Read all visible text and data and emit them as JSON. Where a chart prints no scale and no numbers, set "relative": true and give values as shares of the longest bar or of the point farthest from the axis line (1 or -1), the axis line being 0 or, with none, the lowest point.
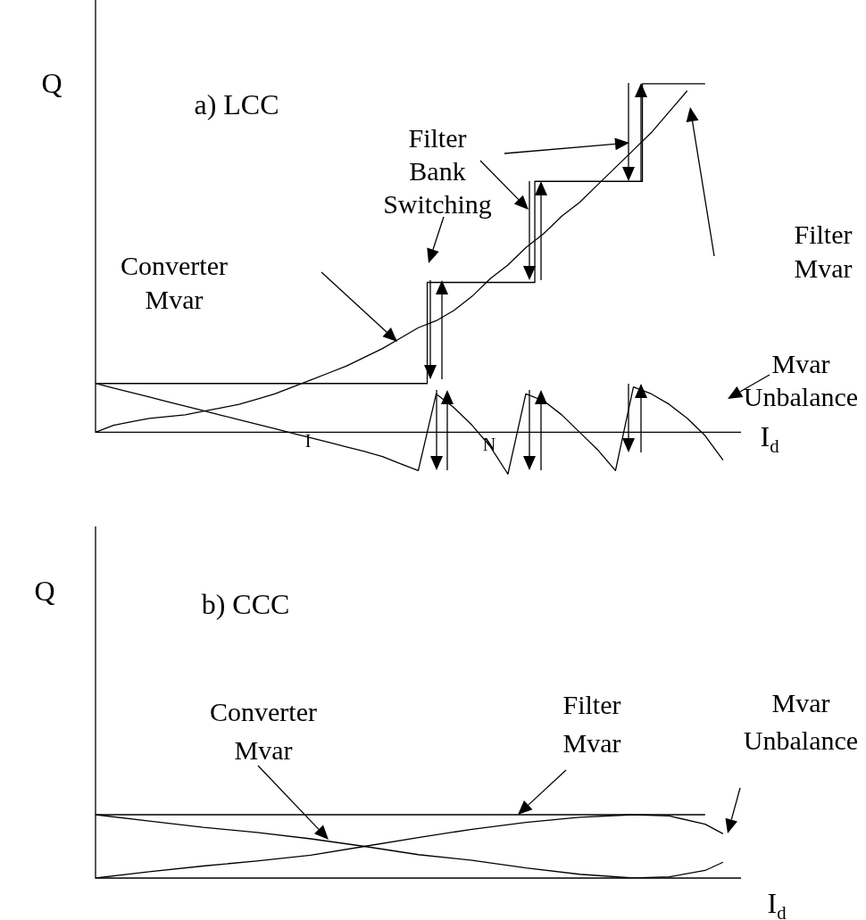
{
  "chart_data": [
    {
      "type": "line",
      "title": "a) LCC",
      "ylabel": "Q",
      "xlabel": "I$_{d}$",
      "relative": true,
      "tick_labels": false,
      "categories": [
        null,
        null,
        null,
        null,
        null,
        null,
        null,
        null,
        null,
        null,
        null,
        null,
        null,
        null,
        null,
        null,
        null,
        null,
        null,
        null,
        null,
        null,
        null,
        null,
        null,
        null,
        null,
        null,
        null,
        null,
        null,
        null,
        null,
        null,
        null,
        null,
        null
      ],
      "annotations": [
        "Filter Bank Switching",
        "Converter Mvar",
        "Filter Mvar",
        "Mvar Unbalance",
        "I",
        "N"
      ],
      "series": [
        {
          "type": "step",
          "color": "#000000",
          "values": [
            0.14,
            0.14,
            0.14,
            0.14,
            0.14,
            0.14,
            0.14,
            0.14,
            0.14,
            0.14,
            0.14,
            0.14,
            0.14,
            0.14,
            0.14,
            0.14,
            0.14,
            0.14,
            0.14,
            0.43,
            0.43,
            0.43,
            0.43,
            0.43,
            0.43,
            0.72,
            0.72,
            0.72,
            0.72,
            0.72,
            0.72,
            1.0,
            1.0,
            1.0,
            1.0,
            null,
            null
          ]
        },
        {
          "type": "line",
          "color": "#000000",
          "values": [
            0,
            0.02,
            0.03,
            0.04,
            0.045,
            0.05,
            0.06,
            0.07,
            0.08,
            0.095,
            0.11,
            0.13,
            0.15,
            0.17,
            0.19,
            0.215,
            0.24,
            0.27,
            0.3,
            0.32,
            0.35,
            0.39,
            0.44,
            0.48,
            0.53,
            0.57,
            0.62,
            0.66,
            0.71,
            0.76,
            0.81,
            0.86,
            0.92,
            0.98,
            null,
            null,
            null
          ]
        },
        {
          "type": "line",
          "color": "#000000",
          "values": [
            0.14,
            0.127,
            0.114,
            0.101,
            0.088,
            0.075,
            0.062,
            0.049,
            0.036,
            0.023,
            0.01,
            -0.003,
            -0.016,
            -0.029,
            -0.042,
            -0.055,
            -0.07,
            -0.09,
            -0.11,
            0.11,
            0.07,
            0.02,
            -0.04,
            -0.12,
            0.11,
            0.09,
            0.05,
            0,
            -0.05,
            -0.11,
            0.13,
            0.11,
            0.08,
            0.04,
            -0.01,
            -0.08,
            null
          ]
        }
      ]
    },
    {
      "type": "line",
      "title": "b) CCC",
      "ylabel": "Q",
      "xlabel": "I$_{d}$",
      "relative": true,
      "tick_labels": false,
      "categories": [
        null,
        null,
        null,
        null,
        null,
        null,
        null,
        null,
        null,
        null,
        null,
        null,
        null,
        null,
        null,
        null,
        null,
        null,
        null,
        null,
        null,
        null,
        null,
        null,
        null,
        null,
        null,
        null,
        null,
        null,
        null,
        null,
        null,
        null,
        null,
        null,
        null
      ],
      "annotations": [
        "Converter Mvar",
        "Filter Mvar",
        "Mvar Unbalance"
      ],
      "series": [
        {
          "type": "line",
          "color": "#000000",
          "values": [
            1.0,
            null,
            null,
            0.9,
            null,
            null,
            0.8,
            null,
            null,
            0.72,
            null,
            null,
            0.62,
            null,
            null,
            0.5,
            null,
            null,
            0.37,
            null,
            null,
            0.28,
            null,
            null,
            0.16,
            null,
            null,
            0.06,
            null,
            null,
            0.0,
            null,
            0.02,
            null,
            0.12,
            0.25,
            null
          ]
        },
        {
          "type": "line",
          "color": "#000000",
          "values": [
            1.0,
            1.0,
            1.0,
            1.0,
            1.0,
            1.0,
            1.0,
            1.0,
            1.0,
            1.0,
            1.0,
            1.0,
            1.0,
            1.0,
            1.0,
            1.0,
            1.0,
            1.0,
            1.0,
            1.0,
            1.0,
            1.0,
            1.0,
            1.0,
            1.0,
            1.0,
            1.0,
            1.0,
            1.0,
            1.0,
            1.0,
            1.0,
            1.0,
            1.0,
            1.0,
            null,
            null
          ]
        },
        {
          "type": "line",
          "color": "#000000",
          "values": [
            0,
            null,
            null,
            0.1,
            null,
            null,
            0.19,
            null,
            null,
            0.27,
            null,
            null,
            0.36,
            null,
            null,
            0.5,
            null,
            null,
            0.64,
            null,
            null,
            0.77,
            null,
            null,
            0.88,
            null,
            null,
            0.96,
            null,
            null,
            1.0,
            null,
            0.98,
            null,
            0.85,
            0.7,
            null
          ]
        }
      ]
    }
  ]
}
